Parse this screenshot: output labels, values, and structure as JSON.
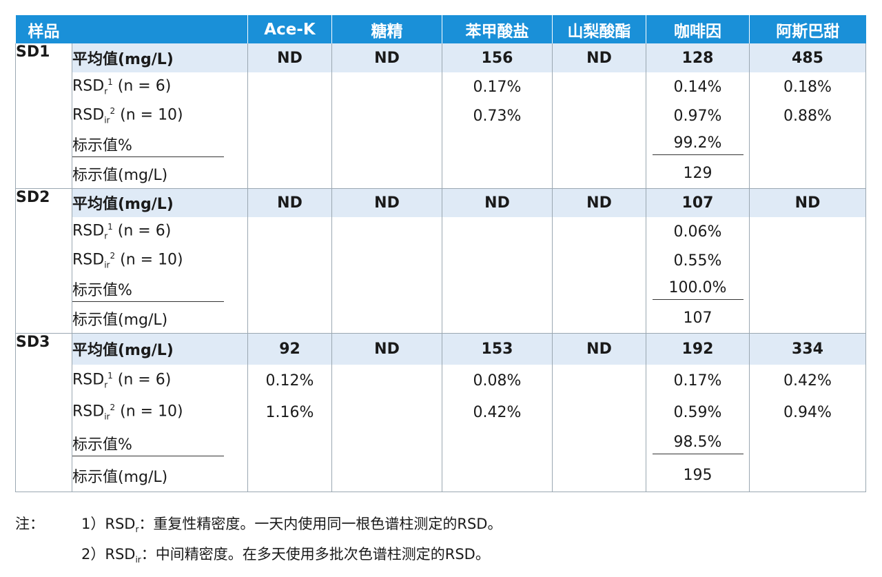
{
  "headers": [
    "样品",
    "Ace-K",
    "糖精",
    "苯甲酸盐",
    "山梨酸酯",
    "咖啡因",
    "阿斯巴甜"
  ],
  "row_labels": {
    "mean": "平均值(mg/L)",
    "rsd_r_main": "RSD",
    "rsd_r_sub": "r",
    "rsd_r_sup": "1",
    "rsd_r_tail": " (n = 6)",
    "rsd_ir_main": "RSD",
    "rsd_ir_sub": "ir",
    "rsd_ir_sup": "2",
    "rsd_ir_tail": " (n = 10)",
    "label_pct": "标示值%",
    "label_mgl": "标示值(mg/L)"
  },
  "samples": [
    {
      "name": "SD1",
      "mean": [
        "ND",
        "ND",
        "156",
        "ND",
        "128",
        "485"
      ],
      "rsd_r": [
        "",
        "",
        "0.17%",
        "",
        "0.14%",
        "0.18%"
      ],
      "rsd_ir": [
        "",
        "",
        "0.73%",
        "",
        "0.97%",
        "0.88%"
      ],
      "label_pct": [
        "",
        "",
        "",
        "",
        "99.2%",
        ""
      ],
      "label_mgl": [
        "",
        "",
        "",
        "",
        "129",
        ""
      ]
    },
    {
      "name": "SD2",
      "mean": [
        "ND",
        "ND",
        "ND",
        "ND",
        "107",
        "ND"
      ],
      "rsd_r": [
        "",
        "",
        "",
        "",
        "0.06%",
        ""
      ],
      "rsd_ir": [
        "",
        "",
        "",
        "",
        "0.55%",
        ""
      ],
      "label_pct": [
        "",
        "",
        "",
        "",
        "100.0%",
        ""
      ],
      "label_mgl": [
        "",
        "",
        "",
        "",
        "107",
        ""
      ]
    },
    {
      "name": "SD3",
      "mean": [
        "92",
        "ND",
        "153",
        "ND",
        "192",
        "334"
      ],
      "rsd_r": [
        "0.12%",
        "",
        "0.08%",
        "",
        "0.17%",
        "0.42%"
      ],
      "rsd_ir": [
        "1.16%",
        "",
        "0.42%",
        "",
        "0.59%",
        "0.94%"
      ],
      "label_pct": [
        "",
        "",
        "",
        "",
        "98.5%",
        ""
      ],
      "label_mgl": [
        "",
        "",
        "",
        "",
        "195",
        ""
      ]
    }
  ],
  "notes": {
    "label": "注：",
    "note1_prefix": "1）RSD",
    "note1_sub": "r",
    "note1_text": "：重复性精密度。一天内使用同一根色谱柱测定的RSD。",
    "note2_prefix": "2）RSD",
    "note2_sub": "ir",
    "note2_text": "：中间精密度。在多天使用多批次色谱柱测定的RSD。"
  },
  "colors": {
    "header_bg": "#1a90d8",
    "mean_row_bg": "#dfeaf6",
    "grid": "#9aa7b1"
  }
}
